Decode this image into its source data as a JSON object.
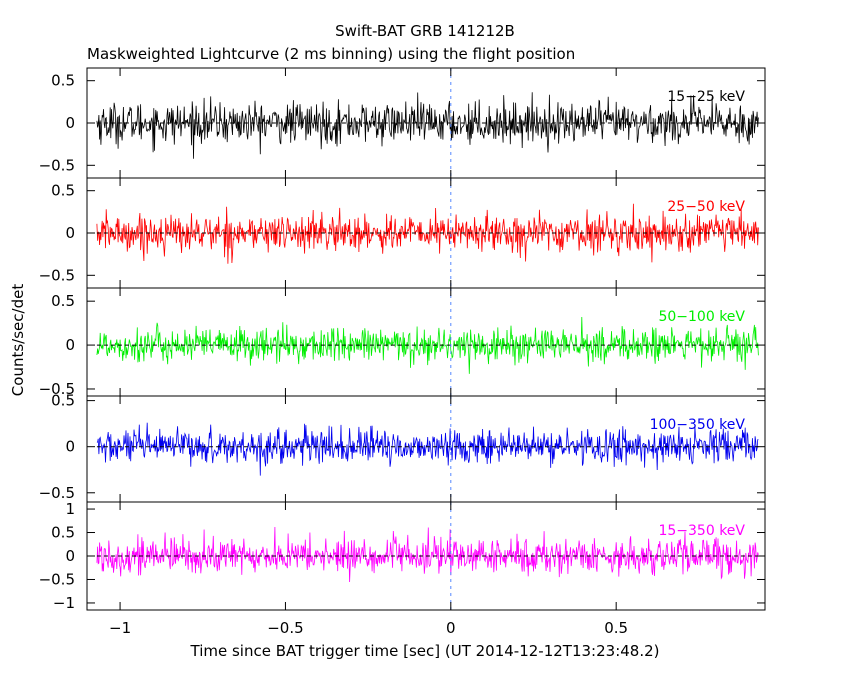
{
  "chart_data": {
    "type": "line",
    "title": "Swift-BAT GRB 141212B",
    "subtitle": "Maskweighted Lightcurve (2 ms binning) using the flight position",
    "xlabel": "Time since BAT trigger time [sec] (UT 2014-12-12T13:23:48.2)",
    "ylabel": "Counts/sec/det",
    "xlim": [
      -1.1,
      0.95
    ],
    "x_ticks": [
      -1,
      -0.5,
      0,
      0.5
    ],
    "x_tick_labels": [
      "−1",
      "−0.5",
      "0",
      "0.5"
    ],
    "binning_sec": 0.002,
    "data_range": [
      -1.07,
      0.93
    ],
    "grid": false,
    "panels": [
      {
        "label": "15−25 keV",
        "color": "#000000",
        "ylim": [
          -0.65,
          0.65
        ],
        "yticks": [
          -0.5,
          0,
          0.5
        ],
        "ytick_labels": [
          "−0.5",
          "0",
          "0.5"
        ],
        "noise_amplitude": 0.22
      },
      {
        "label": "25−50 keV",
        "color": "#ff0000",
        "ylim": [
          -0.65,
          0.65
        ],
        "yticks": [
          -0.5,
          0,
          0.5
        ],
        "ytick_labels": [
          "−0.5",
          "0",
          "0.5"
        ],
        "noise_amplitude": 0.2
      },
      {
        "label": "50−100 keV",
        "color": "#00ee00",
        "ylim": [
          -0.58,
          0.65
        ],
        "yticks": [
          -0.5,
          0,
          0.5
        ],
        "ytick_labels": [
          "−0.5",
          "0",
          "0.5"
        ],
        "noise_amplitude": 0.18
      },
      {
        "label": "100−350 keV",
        "color": "#0000ee",
        "ylim": [
          -0.6,
          0.55
        ],
        "yticks": [
          -0.5,
          0,
          0.5
        ],
        "ytick_labels": [
          "−0.5",
          "0",
          "0.5"
        ],
        "noise_amplitude": 0.17
      },
      {
        "label": "15−350 keV",
        "color": "#ff00ff",
        "ylim": [
          -1.15,
          1.15
        ],
        "yticks": [
          -1,
          -0.5,
          0,
          0.5,
          1
        ],
        "ytick_labels": [
          "−1",
          "−0.5",
          "0",
          "0.5",
          "1"
        ],
        "noise_amplitude": 0.35
      }
    ]
  }
}
